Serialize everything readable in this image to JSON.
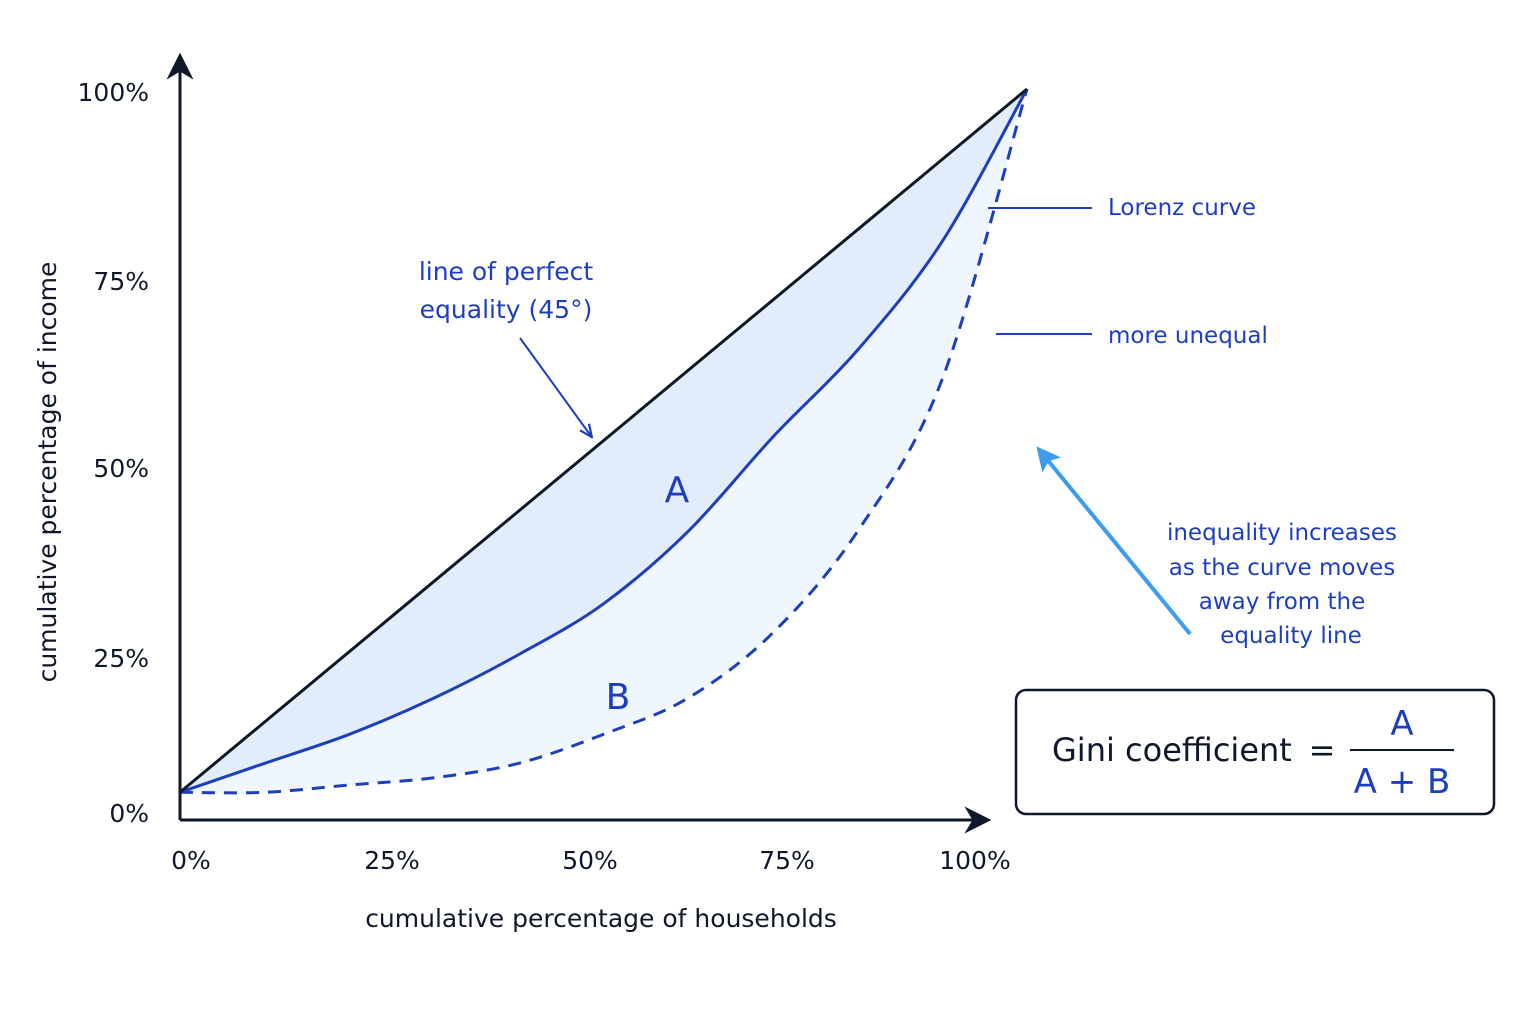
{
  "chart_data": {
    "type": "line",
    "xlabel": "cumulative percentage of households",
    "ylabel": "cumulative percentage of income",
    "xlim": [
      0,
      100
    ],
    "ylim": [
      0,
      100
    ],
    "x_ticks": [
      "0%",
      "25%",
      "50%",
      "75%",
      "100%"
    ],
    "y_ticks": [
      "0%",
      "25%",
      "50%",
      "75%",
      "100%"
    ],
    "series": [
      {
        "x": [
          0,
          100
        ],
        "y": [
          3,
          100
        ],
        "style": "solid",
        "color": "#0f172a"
      },
      {
        "x": [
          0,
          10,
          20,
          30,
          40,
          50,
          60,
          70,
          80,
          90,
          100
        ],
        "y": [
          3,
          7,
          11,
          16,
          22,
          29,
          39,
          52,
          64,
          79,
          100
        ],
        "style": "solid",
        "color": "#1d3fbf"
      },
      {
        "x": [
          0,
          10,
          20,
          30,
          40,
          50,
          60,
          70,
          80,
          90,
          100
        ],
        "y": [
          3,
          3,
          4,
          5,
          7,
          11,
          16,
          25,
          39,
          60,
          100
        ],
        "style": "dashed",
        "color": "#1d3fbf"
      }
    ],
    "annotations": {
      "equality_line": [
        "line of perfect",
        "equality (45°)"
      ],
      "lorenz_label": "Lorenz curve",
      "unequal_label": "more unequal",
      "region_a": "A",
      "region_b": "B",
      "trend_note": [
        "inequality increases",
        "as the curve moves",
        "away from the",
        "equality line"
      ]
    },
    "grid": false,
    "legend": "none"
  },
  "gini": {
    "label": "Gini coefficient",
    "equals": "=",
    "numerator": "A",
    "denominator": "A + B"
  },
  "colors": {
    "axis": "#0f172a",
    "accent": "#1d3fbf",
    "arrow_light": "#3b9cf0",
    "fill_a": "#e2edfb",
    "fill_b": "#f0f6fd"
  }
}
